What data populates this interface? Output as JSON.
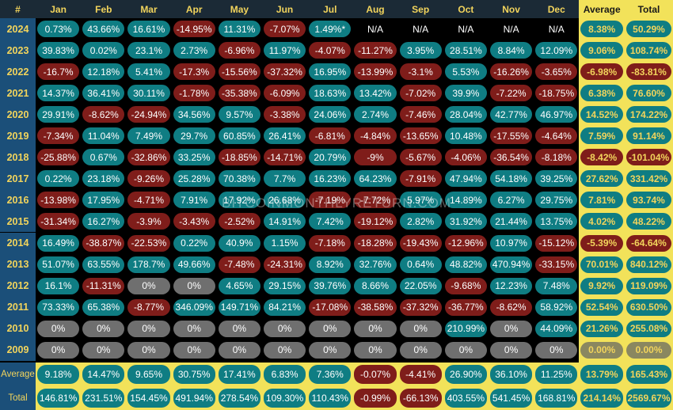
{
  "header": {
    "corner": "#",
    "months": [
      "Jan",
      "Feb",
      "Mar",
      "Apr",
      "May",
      "Jun",
      "Jul",
      "Aug",
      "Sep",
      "Oct",
      "Nov",
      "Dec"
    ],
    "average": "Average",
    "total": "Total"
  },
  "colors": {
    "positive": "#0f7d83",
    "negative": "#7f1d1a",
    "zero": "#6f6f6f",
    "highlight_yellow": "#f2e25a",
    "header_text_yellow": "#f2d45c",
    "year_column_blue": "#1b4f79"
  },
  "watermark": "BITCOINMONTHLYRETURN.COM",
  "chart_data": {
    "type": "table",
    "rows": [
      {
        "year": "2024",
        "months": [
          "0.73%",
          "43.66%",
          "16.61%",
          "-14.95%",
          "11.31%",
          "-7.07%",
          "1.49%*",
          "N/A",
          "N/A",
          "N/A",
          "N/A",
          "N/A"
        ],
        "average": "8.38%",
        "total": "50.29%"
      },
      {
        "year": "2023",
        "months": [
          "39.83%",
          "0.02%",
          "23.1%",
          "2.73%",
          "-6.96%",
          "11.97%",
          "-4.07%",
          "-11.27%",
          "3.95%",
          "28.51%",
          "8.84%",
          "12.09%"
        ],
        "average": "9.06%",
        "total": "108.74%"
      },
      {
        "year": "2022",
        "months": [
          "-16.7%",
          "12.18%",
          "5.41%",
          "-17.3%",
          "-15.56%",
          "-37.32%",
          "16.95%",
          "-13.99%",
          "-3.1%",
          "5.53%",
          "-16.26%",
          "-3.65%"
        ],
        "average": "-6.98%",
        "total": "-83.81%"
      },
      {
        "year": "2021",
        "months": [
          "14.37%",
          "36.41%",
          "30.11%",
          "-1.78%",
          "-35.38%",
          "-6.09%",
          "18.63%",
          "13.42%",
          "-7.02%",
          "39.9%",
          "-7.22%",
          "-18.75%"
        ],
        "average": "6.38%",
        "total": "76.60%"
      },
      {
        "year": "2020",
        "months": [
          "29.91%",
          "-8.62%",
          "-24.94%",
          "34.56%",
          "9.57%",
          "-3.38%",
          "24.06%",
          "2.74%",
          "-7.46%",
          "28.04%",
          "42.77%",
          "46.97%"
        ],
        "average": "14.52%",
        "total": "174.22%"
      },
      {
        "year": "2019",
        "months": [
          "-7.34%",
          "11.04%",
          "7.49%",
          "29.7%",
          "60.85%",
          "26.41%",
          "-6.81%",
          "-4.84%",
          "-13.65%",
          "10.48%",
          "-17.55%",
          "-4.64%"
        ],
        "average": "7.59%",
        "total": "91.14%"
      },
      {
        "year": "2018",
        "months": [
          "-25.88%",
          "0.67%",
          "-32.86%",
          "33.25%",
          "-18.85%",
          "-14.71%",
          "20.79%",
          "-9%",
          "-5.67%",
          "-4.06%",
          "-36.54%",
          "-8.18%"
        ],
        "average": "-8.42%",
        "total": "-101.04%"
      },
      {
        "year": "2017",
        "months": [
          "0.22%",
          "23.18%",
          "-9.26%",
          "25.28%",
          "70.38%",
          "7.7%",
          "16.23%",
          "64.23%",
          "-7.91%",
          "47.94%",
          "54.18%",
          "39.25%"
        ],
        "average": "27.62%",
        "total": "331.42%"
      },
      {
        "year": "2016",
        "months": [
          "-13.98%",
          "17.95%",
          "-4.71%",
          "7.91%",
          "17.92%",
          "26.68%",
          "-7.19%",
          "-7.72%",
          "5.97%",
          "14.89%",
          "6.27%",
          "29.75%"
        ],
        "average": "7.81%",
        "total": "93.74%"
      },
      {
        "year": "2015",
        "months": [
          "-31.34%",
          "16.27%",
          "-3.9%",
          "-3.43%",
          "-2.52%",
          "14.91%",
          "7.42%",
          "-19.12%",
          "2.82%",
          "31.92%",
          "21.44%",
          "13.75%"
        ],
        "average": "4.02%",
        "total": "48.22%"
      },
      {
        "year": "2014",
        "months": [
          "16.49%",
          "-38.87%",
          "-22.53%",
          "0.22%",
          "40.9%",
          "1.15%",
          "-7.18%",
          "-18.28%",
          "-19.43%",
          "-12.96%",
          "10.97%",
          "-15.12%"
        ],
        "average": "-5.39%",
        "total": "-64.64%"
      },
      {
        "year": "2013",
        "months": [
          "51.07%",
          "63.55%",
          "178.7%",
          "49.66%",
          "-7.48%",
          "-24.31%",
          "8.92%",
          "32.76%",
          "0.64%",
          "48.82%",
          "470.94%",
          "-33.15%"
        ],
        "average": "70.01%",
        "total": "840.12%"
      },
      {
        "year": "2012",
        "months": [
          "16.1%",
          "-11.31%",
          "0%",
          "0%",
          "4.65%",
          "29.15%",
          "39.76%",
          "8.66%",
          "22.05%",
          "-9.68%",
          "12.23%",
          "7.48%"
        ],
        "average": "9.92%",
        "total": "119.09%"
      },
      {
        "year": "2011",
        "months": [
          "73.33%",
          "65.38%",
          "-8.77%",
          "346.09%",
          "149.71%",
          "84.21%",
          "-17.08%",
          "-38.58%",
          "-37.32%",
          "-36.77%",
          "-8.62%",
          "58.92%"
        ],
        "average": "52.54%",
        "total": "630.50%"
      },
      {
        "year": "2010",
        "months": [
          "0%",
          "0%",
          "0%",
          "0%",
          "0%",
          "0%",
          "0%",
          "0%",
          "0%",
          "210.99%",
          "0%",
          "44.09%"
        ],
        "average": "21.26%",
        "total": "255.08%"
      },
      {
        "year": "2009",
        "months": [
          "0%",
          "0%",
          "0%",
          "0%",
          "0%",
          "0%",
          "0%",
          "0%",
          "0%",
          "0%",
          "0%",
          "0%"
        ],
        "average": "0.00%",
        "total": "0.00%"
      }
    ],
    "footer": {
      "average": {
        "label": "Average",
        "months": [
          "9.18%",
          "14.47%",
          "9.65%",
          "30.75%",
          "17.41%",
          "6.83%",
          "7.36%",
          "-0.07%",
          "-4.41%",
          "26.90%",
          "36.10%",
          "11.25%"
        ],
        "average": "13.79%",
        "total": "165.43%"
      },
      "total": {
        "label": "Total",
        "months": [
          "146.81%",
          "231.51%",
          "154.45%",
          "491.94%",
          "278.54%",
          "109.30%",
          "110.43%",
          "-0.99%",
          "-66.13%",
          "403.55%",
          "541.45%",
          "168.81%"
        ],
        "average": "214.14%",
        "total": "2569.67%"
      }
    }
  }
}
